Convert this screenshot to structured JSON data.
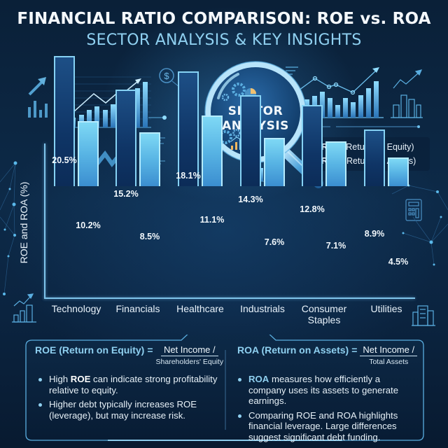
{
  "header": {
    "title": "FINANCIAL RATIO COMPARISON: ROE vs. ROA",
    "subtitle": "SECTOR ANALYSIS & KEY INSIGHTS"
  },
  "magnifier": {
    "line1": "SECTOR",
    "line2": "ANALYSIS"
  },
  "legend": {
    "items": [
      {
        "key": "ROE",
        "desc": "(Return on Equity)",
        "color": "#2a66a8"
      },
      {
        "key": "ROA",
        "desc": "(Return on Assets)",
        "color": "#8fdcf8"
      }
    ]
  },
  "chart_data": {
    "type": "bar",
    "title": "FINANCIAL RATIO COMPARISON: ROE vs. ROA",
    "subtitle": "SECTOR ANALYSIS & KEY INSIGHTS",
    "xlabel": "",
    "ylabel": "ROE and ROA (%)",
    "categories": [
      "Technology",
      "Financials",
      "Healthcare",
      "Industrials",
      "Consumer Staples",
      "Utilities"
    ],
    "series": [
      {
        "name": "ROE (Return on Equity)",
        "color": "#1d4f86",
        "values": [
          20.5,
          15.2,
          18.1,
          14.3,
          12.8,
          8.9
        ],
        "labels": [
          "20.5%",
          "15.2%",
          "18.1%",
          "14.3%",
          "12.8%",
          "8.9%"
        ]
      },
      {
        "name": "ROA (Return on Assets)",
        "color": "#6cc8ef",
        "values": [
          10.2,
          8.5,
          11.1,
          7.6,
          7.1,
          4.5
        ],
        "labels": [
          "10.2%",
          "8.5%",
          "11.1%",
          "7.6%",
          "7.1%",
          "4.5%"
        ]
      }
    ],
    "ylim": [
      0,
      22
    ],
    "grid": false,
    "legend_position": "upper right",
    "data_labels": true
  },
  "categories_display": [
    {
      "line1": "Technology",
      "line2": ""
    },
    {
      "line1": "Financials",
      "line2": ""
    },
    {
      "line1": "Healthcare",
      "line2": ""
    },
    {
      "line1": "Industrials",
      "line2": ""
    },
    {
      "line1": "Consumer",
      "line2": "Staples"
    },
    {
      "line1": "Utilities",
      "line2": ""
    }
  ],
  "info_panel": {
    "roe": {
      "name": "ROE (Return on Equity)",
      "equals": "=",
      "numerator": "Net Income /",
      "denominator": "Shareholders' Equity",
      "bullets": [
        {
          "pre": "High ",
          "bold": "ROE",
          "post": " can indicate strong profitability relative to equity."
        },
        {
          "pre": "Higher debt typically increases ROE (leverage), but may increase risk.",
          "bold": "",
          "post": ""
        }
      ]
    },
    "roa": {
      "name": "ROA (Return on Assets)",
      "equals": "=",
      "numerator": "Net Income /",
      "denominator": "Total Assets",
      "bullets": [
        {
          "pre": "",
          "bold": "ROA",
          "post": " measures how efficiently a company uses its assets to generate earnings."
        },
        {
          "pre": "Comparing ROE and ROA highlights financial leverage. Large differences suggest significant debt funding.",
          "bold": "",
          "post": ""
        }
      ]
    }
  }
}
